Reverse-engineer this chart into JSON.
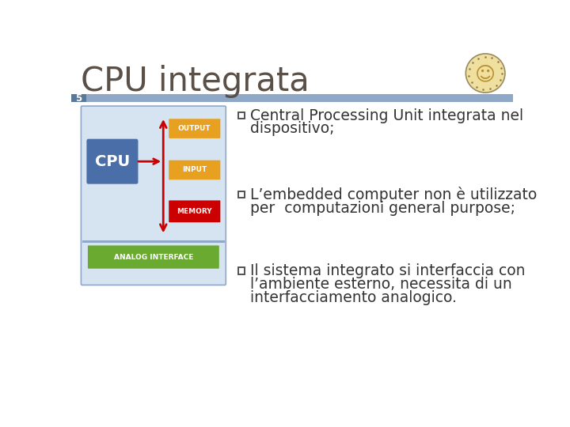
{
  "title": "CPU integrata",
  "slide_number": "5",
  "header_bar_color": "#8fa8c8",
  "background_color": "#ffffff",
  "title_color": "#5a5048",
  "title_fontsize": 30,
  "bullet_lines": [
    [
      "Central Processing Unit integrata nel",
      "dispositivo;"
    ],
    [
      "L’embedded computer non è utilizzato",
      "per  computazioni general purpose;"
    ],
    [
      "Il sistema integrato si interfaccia con",
      "l’ambiente esterno, necessita di un",
      "interfacciamento analogico."
    ]
  ],
  "bullet_color": "#333333",
  "bullet_fontsize": 13.5,
  "diagram": {
    "bg_color": "#d6e3f0",
    "bg_border_color": "#8fa8c8",
    "cpu_color": "#4a6ea8",
    "cpu_label": "CPU",
    "output_color": "#e8a020",
    "output_label": "OUTPUT",
    "input_color": "#e8a020",
    "input_label": "INPUT",
    "memory_color": "#cc0000",
    "memory_label": "MEMORY",
    "analog_color": "#6aaa30",
    "analog_label": "ANALOG INTERFACE",
    "arrow_color": "#cc0000",
    "divider_color": "#8fa8c8"
  },
  "num_bg_color": "#5a7898",
  "logo_bg": "#f0e0a0",
  "logo_border": "#9a8a60"
}
